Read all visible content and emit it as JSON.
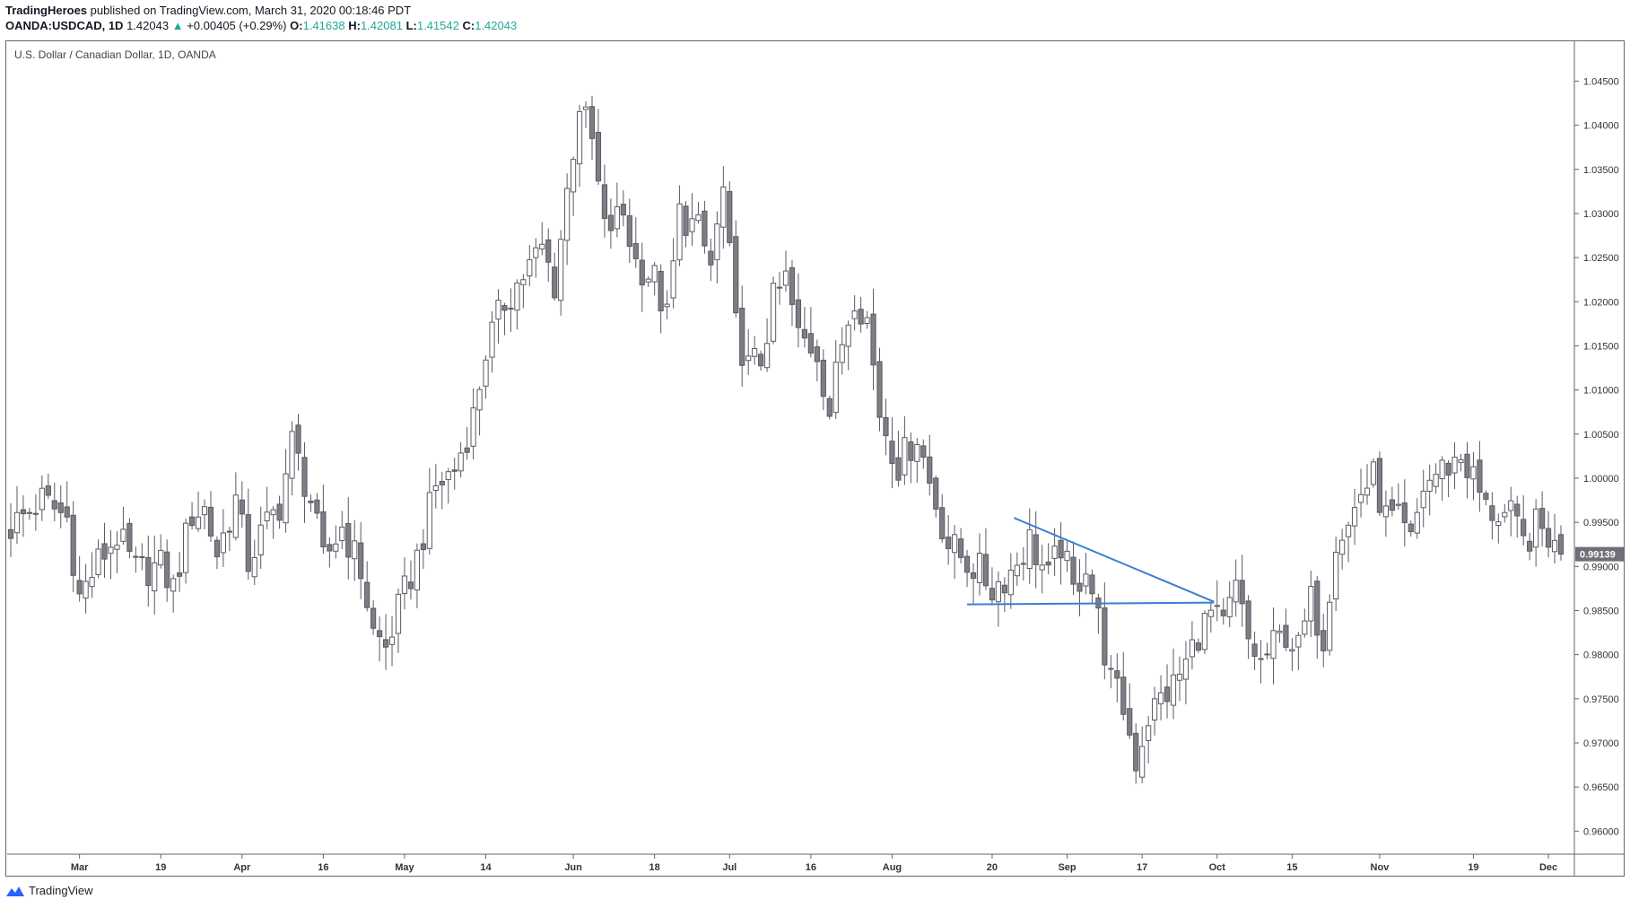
{
  "header": {
    "publisher": "TradingHeroes",
    "published_text": "published on TradingView.com, March 31, 2020 00:18:46 PDT",
    "symbol": "OANDA:USDCAD, 1D",
    "last": "1.42043",
    "change": "+0.00405 (+0.29%)",
    "open_label": "O:",
    "open": "1.41638",
    "high_label": "H:",
    "high": "1.42081",
    "low_label": "L:",
    "low": "1.41542",
    "close_label": "C:",
    "close": "1.42043"
  },
  "footer": {
    "brand": "TradingView",
    "icon": "tradingview-logo-icon"
  },
  "colors": {
    "up_fill": "#ffffff",
    "down_fill": "#7d7d85",
    "wick": "#5a5a62",
    "trendline": "#3a7fd6",
    "price_tag_bg": "#6f6f78",
    "up_arrow": "#26a69a"
  },
  "chart_data": {
    "type": "candlestick",
    "title": "U.S. Dollar / Canadian Dollar, 1D, OANDA",
    "ylim": [
      0.958,
      1.0485
    ],
    "yticks": [
      0.96,
      0.965,
      0.97,
      0.975,
      0.98,
      0.985,
      0.99,
      0.995,
      1.0,
      1.005,
      1.01,
      1.015,
      1.02,
      1.025,
      1.03,
      1.035,
      1.04,
      1.045
    ],
    "ytick_labels": [
      "0.96000",
      "0.96500",
      "0.97000",
      "0.97500",
      "0.98000",
      "0.98500",
      "0.99000",
      "0.99500",
      "1.00000",
      "1.00500",
      "1.01000",
      "1.01500",
      "1.02000",
      "1.02500",
      "1.03000",
      "1.03500",
      "1.04000",
      "1.04500"
    ],
    "xtick_labels": [
      {
        "label": "Mar",
        "index": 11
      },
      {
        "label": "19",
        "index": 24
      },
      {
        "label": "Apr",
        "index": 37
      },
      {
        "label": "16",
        "index": 50
      },
      {
        "label": "May",
        "index": 63
      },
      {
        "label": "14",
        "index": 76
      },
      {
        "label": "Jun",
        "index": 90
      },
      {
        "label": "18",
        "index": 103
      },
      {
        "label": "Jul",
        "index": 115
      },
      {
        "label": "16",
        "index": 128
      },
      {
        "label": "Aug",
        "index": 141
      },
      {
        "label": "20",
        "index": 157
      },
      {
        "label": "Sep",
        "index": 169
      },
      {
        "label": "17",
        "index": 181
      },
      {
        "label": "Oct",
        "index": 193
      },
      {
        "label": "15",
        "index": 205
      },
      {
        "label": "Nov",
        "index": 219
      },
      {
        "label": "19",
        "index": 234
      },
      {
        "label": "Dec",
        "index": 246
      }
    ],
    "last_price_label": "0.99139",
    "last_price": 0.99139,
    "waypoints": [
      [
        0,
        0.9945
      ],
      [
        5,
        0.9975
      ],
      [
        9,
        0.9955
      ],
      [
        11,
        0.9865
      ],
      [
        14,
        0.9905
      ],
      [
        17,
        0.9935
      ],
      [
        20,
        0.9895
      ],
      [
        24,
        0.99
      ],
      [
        26,
        0.9875
      ],
      [
        29,
        0.996
      ],
      [
        31,
        0.9965
      ],
      [
        33,
        0.9915
      ],
      [
        36,
        0.9975
      ],
      [
        38,
        0.9905
      ],
      [
        40,
        0.9935
      ],
      [
        43,
        0.997
      ],
      [
        45,
        1.004
      ],
      [
        48,
        0.9975
      ],
      [
        50,
        0.9905
      ],
      [
        53,
        0.9945
      ],
      [
        56,
        0.9895
      ],
      [
        58,
        0.9825
      ],
      [
        60,
        0.9808
      ],
      [
        62,
        0.985
      ],
      [
        65,
        0.991
      ],
      [
        68,
        0.999
      ],
      [
        71,
        1.001
      ],
      [
        74,
        1.007
      ],
      [
        76,
        1.0145
      ],
      [
        79,
        1.02
      ],
      [
        82,
        1.023
      ],
      [
        85,
        1.026
      ],
      [
        87,
        1.022
      ],
      [
        89,
        1.0325
      ],
      [
        91,
        1.0425
      ],
      [
        93,
        1.038
      ],
      [
        95,
        1.028
      ],
      [
        98,
        1.03
      ],
      [
        100,
        1.0245
      ],
      [
        103,
        1.0225
      ],
      [
        105,
        1.018
      ],
      [
        107,
        1.03
      ],
      [
        110,
        1.028
      ],
      [
        112,
        1.024
      ],
      [
        114,
        1.0325
      ],
      [
        116,
        1.017
      ],
      [
        118,
        1.0125
      ],
      [
        120,
        1.0135
      ],
      [
        122,
        1.02
      ],
      [
        124,
        1.0225
      ],
      [
        126,
        1.016
      ],
      [
        129,
        1.0145
      ],
      [
        131,
        1.0075
      ],
      [
        133,
        1.0155
      ],
      [
        135,
        1.021
      ],
      [
        137,
        1.018
      ],
      [
        139,
        1.0075
      ],
      [
        142,
        1.0015
      ],
      [
        145,
        1.005
      ],
      [
        147,
        0.9995
      ],
      [
        150,
        0.9925
      ],
      [
        153,
        0.9905
      ],
      [
        155,
        0.9895
      ],
      [
        157,
        0.9875
      ],
      [
        160,
        0.9895
      ],
      [
        163,
        0.993
      ],
      [
        166,
        0.9885
      ],
      [
        168,
        0.9925
      ],
      [
        170,
        0.987
      ],
      [
        172,
        0.9905
      ],
      [
        174,
        0.984
      ],
      [
        176,
        0.977
      ],
      [
        178,
        0.974
      ],
      [
        180,
        0.968
      ],
      [
        182,
        0.973
      ],
      [
        184,
        0.975
      ],
      [
        186,
        0.9765
      ],
      [
        188,
        0.979
      ],
      [
        190,
        0.9825
      ],
      [
        192,
        0.9845
      ],
      [
        194,
        0.983
      ],
      [
        196,
        0.9875
      ],
      [
        198,
        0.9815
      ],
      [
        200,
        0.979
      ],
      [
        202,
        0.981
      ],
      [
        204,
        0.9825
      ],
      [
        206,
        0.9805
      ],
      [
        208,
        0.986
      ],
      [
        210,
        0.982
      ],
      [
        212,
        0.9935
      ],
      [
        214,
        0.9945
      ],
      [
        216,
        0.9985
      ],
      [
        218,
        1.0
      ],
      [
        220,
        0.9955
      ],
      [
        222,
        0.995
      ],
      [
        224,
        0.9925
      ],
      [
        226,
        0.999
      ],
      [
        228,
        1.0005
      ],
      [
        230,
        1.0015
      ],
      [
        232,
        1.0025
      ],
      [
        234,
        1.0
      ],
      [
        236,
        0.9965
      ],
      [
        238,
        0.996
      ],
      [
        240,
        0.9955
      ],
      [
        242,
        0.9925
      ],
      [
        244,
        0.9945
      ],
      [
        246,
        0.9935
      ],
      [
        247,
        0.992
      ],
      [
        248,
        0.9914
      ]
    ],
    "trendlines": [
      {
        "name": "descending-line",
        "from": [
          160.5,
          0.9955
        ],
        "to": [
          192.5,
          0.986
        ]
      },
      {
        "name": "support-line",
        "from": [
          153.0,
          0.9857
        ],
        "to": [
          192.5,
          0.9859
        ]
      }
    ]
  }
}
